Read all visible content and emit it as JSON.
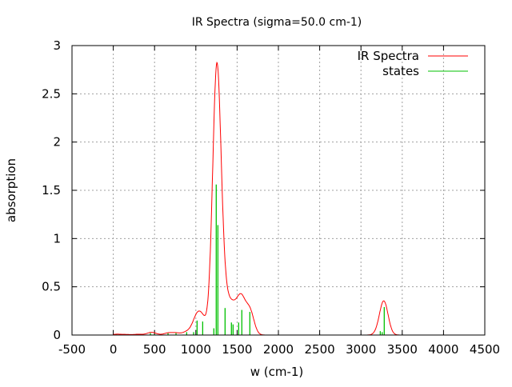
{
  "chart_data": {
    "type": "line",
    "title": "IR Spectra (sigma=50.0 cm-1)",
    "xlabel": "w (cm-1)",
    "ylabel": "absorption",
    "xlim": [
      -500,
      4500
    ],
    "ylim": [
      0,
      3
    ],
    "sigma": 50.0,
    "grid": true,
    "legend_position": "top-right",
    "xticks": [
      "-500",
      "0",
      "500",
      "1000",
      "1500",
      "2000",
      "2500",
      "3000",
      "3500",
      "4000",
      "4500"
    ],
    "yticks": [
      "0",
      "0.5",
      "1",
      "1.5",
      "2",
      "2.5",
      "3"
    ],
    "series": [
      {
        "name": "IR Spectra",
        "kind": "broadened-line",
        "color": "#ff0000"
      },
      {
        "name": "states",
        "kind": "sticks",
        "color": "#00c000",
        "x": [
          40,
          150,
          300,
          450,
          498,
          663,
          760,
          889,
          973,
          1015,
          1083,
          1218,
          1247,
          1267,
          1354,
          1431,
          1451,
          1519,
          1557,
          1654,
          3234,
          3257,
          3282
        ],
        "y": [
          0.008,
          0.006,
          0.008,
          0.02,
          0.01,
          0.02,
          0.02,
          0.03,
          0.03,
          0.15,
          0.14,
          0.07,
          1.56,
          1.14,
          0.28,
          0.13,
          0.11,
          0.13,
          0.26,
          0.24,
          0.04,
          0.03,
          0.29
        ]
      }
    ]
  }
}
